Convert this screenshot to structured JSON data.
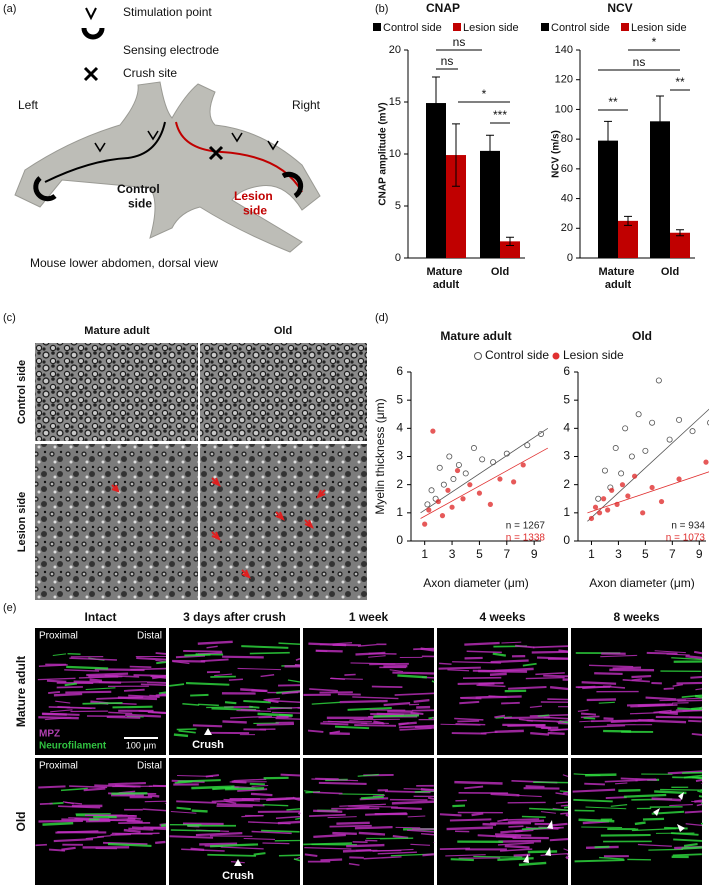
{
  "panel_a": {
    "label": "(a)",
    "legend": [
      "Stimulation point",
      "Sensing electrode",
      "Crush site"
    ],
    "left": "Left",
    "right": "Right",
    "control": "Control side",
    "lesion": "Lesion side",
    "caption": "Mouse lower abdomen, dorsal view"
  },
  "panel_b": {
    "label": "(b)"
  },
  "chart_data": [
    {
      "type": "bar",
      "title": "CNAP",
      "ylabel": "CNAP amplitude (mV)",
      "categories": [
        "Mature adult",
        "Old"
      ],
      "series": [
        {
          "name": "Control side",
          "color": "#000000",
          "values": [
            14.9,
            10.3
          ],
          "errors": [
            2.5,
            1.5
          ]
        },
        {
          "name": "Lesion side",
          "color": "#c00000",
          "values": [
            9.9,
            1.6
          ],
          "errors": [
            3.0,
            0.4
          ]
        }
      ],
      "ylim": [
        0,
        20
      ],
      "yticks": [
        0,
        5,
        10,
        15,
        20
      ],
      "annotations": [
        "ns",
        "ns",
        "*",
        "***"
      ]
    },
    {
      "type": "bar",
      "title": "NCV",
      "ylabel": "NCV (m/s)",
      "categories": [
        "Mature adult",
        "Old"
      ],
      "series": [
        {
          "name": "Control side",
          "color": "#000000",
          "values": [
            79,
            92
          ],
          "errors": [
            13,
            17
          ]
        },
        {
          "name": "Lesion side",
          "color": "#c00000",
          "values": [
            25,
            17
          ],
          "errors": [
            3,
            2
          ]
        }
      ],
      "ylim": [
        0,
        140
      ],
      "yticks": [
        0,
        20,
        40,
        60,
        80,
        100,
        120,
        140
      ],
      "annotations": [
        "**",
        "ns",
        "*",
        "**"
      ]
    },
    {
      "type": "scatter",
      "title": "Mature adult",
      "xlabel": "Axon diameter (μm)",
      "ylabel": "Myelin thickness (μm)",
      "xlim": [
        0,
        9.5
      ],
      "ylim": [
        0,
        6
      ],
      "xticks": [
        1,
        3,
        5,
        7,
        9
      ],
      "yticks": [
        0,
        1,
        2,
        3,
        4,
        5,
        6
      ],
      "series": [
        {
          "name": "Control side",
          "color": "#555555",
          "marker": "open",
          "x": [
            1.2,
            1.5,
            1.8,
            2.1,
            2.4,
            2.8,
            3.1,
            3.5,
            4.0,
            4.6,
            5.2,
            6.0,
            7.0,
            8.5,
            9.5
          ],
          "values": [
            1.3,
            1.8,
            1.5,
            2.6,
            2.0,
            3.0,
            2.2,
            2.7,
            2.4,
            3.3,
            2.9,
            2.8,
            3.1,
            3.4,
            3.8
          ],
          "fit": {
            "x": [
              0.7,
              10
            ],
            "values": [
              1.0,
              4.0
            ]
          }
        },
        {
          "name": "Lesion side",
          "color": "#e03030",
          "marker": "filled",
          "x": [
            1.0,
            1.3,
            1.6,
            2.0,
            2.3,
            2.7,
            3.0,
            3.4,
            3.8,
            4.3,
            5.0,
            5.8,
            6.5,
            7.5,
            8.2
          ],
          "values": [
            0.6,
            1.1,
            3.9,
            1.4,
            0.9,
            1.8,
            1.2,
            2.5,
            1.5,
            2.0,
            1.7,
            1.3,
            2.2,
            2.1,
            2.7
          ],
          "fit": {
            "x": [
              0.7,
              10
            ],
            "values": [
              0.8,
              3.3
            ]
          }
        }
      ],
      "notes": [
        {
          "text": "n = 1267",
          "color": "#222222"
        },
        {
          "text": "n = 1338",
          "color": "#e03030"
        }
      ]
    },
    {
      "type": "scatter",
      "title": "Old",
      "xlabel": "Axon diameter (μm)",
      "xlim": [
        0,
        9.5
      ],
      "ylim": [
        0,
        6
      ],
      "xticks": [
        1,
        3,
        5,
        7,
        9
      ],
      "yticks": [
        0,
        1,
        2,
        3,
        4,
        5,
        6
      ],
      "series": [
        {
          "color": "#555555",
          "marker": "open",
          "x": [
            1.5,
            2.0,
            2.4,
            2.8,
            3.2,
            3.5,
            4.0,
            4.5,
            5.0,
            5.5,
            6.0,
            6.8,
            7.5,
            8.5,
            9.8
          ],
          "values": [
            1.5,
            2.5,
            1.9,
            3.3,
            2.4,
            4.0,
            3.0,
            4.5,
            3.2,
            4.2,
            5.7,
            3.6,
            4.3,
            3.9,
            4.2
          ],
          "fit": {
            "x": [
              0.7,
              10
            ],
            "values": [
              0.7,
              4.8
            ]
          }
        },
        {
          "color": "#e03030",
          "marker": "filled",
          "x": [
            1.0,
            1.3,
            1.6,
            1.9,
            2.2,
            2.5,
            2.9,
            3.3,
            3.7,
            4.2,
            4.8,
            5.5,
            6.2,
            7.5,
            9.5
          ],
          "values": [
            0.8,
            1.2,
            1.0,
            1.5,
            1.1,
            1.8,
            1.3,
            2.0,
            1.6,
            2.3,
            1.0,
            1.9,
            1.4,
            2.2,
            2.8
          ],
          "fit": {
            "x": [
              0.7,
              10
            ],
            "values": [
              1.0,
              2.5
            ]
          }
        }
      ],
      "notes": [
        {
          "text": "n = 934",
          "color": "#222222"
        },
        {
          "text": "n = 1073",
          "color": "#e03030"
        }
      ]
    }
  ],
  "panel_c": {
    "label": "(c)",
    "columns": [
      "Mature adult",
      "Old"
    ],
    "rows": [
      "Control side",
      "Lesion side"
    ]
  },
  "panel_d": {
    "label": "(d)"
  },
  "panel_e": {
    "label": "(e)",
    "columns": [
      "Intact",
      "3 days after crush",
      "1 week",
      "4 weeks",
      "8 weeks"
    ],
    "rows": [
      "Mature adult",
      "Old"
    ],
    "proximal": [
      "Proximal",
      "Proximal"
    ],
    "distal": [
      "Distal",
      "Distal"
    ],
    "stain_1": "MPZ",
    "stain_2": "Neurofilament",
    "scale": "100 μm",
    "crush": [
      "Crush",
      "Crush"
    ]
  }
}
